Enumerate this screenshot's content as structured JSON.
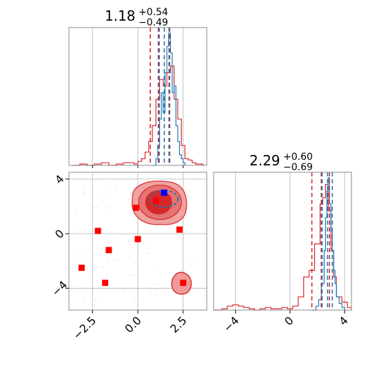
{
  "chart_data": [
    {
      "type": "histogram",
      "panel": "top-left-marginal",
      "title": {
        "value": "1.18",
        "plus": "+0.54",
        "minus": "−0.49"
      },
      "xlim": [
        -3.8,
        3.8
      ],
      "grid": true,
      "red_hist": {
        "x": [
          -3.6,
          -3.2,
          -2.8,
          -2.4,
          -2.0,
          -1.6,
          -1.2,
          -0.8,
          -0.4,
          -0.2,
          0.0,
          0.2,
          0.4,
          0.6,
          0.8,
          1.0,
          1.2,
          1.4,
          1.6,
          1.8,
          2.0,
          2.2,
          2.4,
          2.6,
          2.8,
          3.0,
          3.2,
          3.6
        ],
        "y": [
          0.0,
          0.01,
          0.0,
          0.01,
          0.02,
          0.0,
          0.01,
          0.02,
          0.02,
          0.01,
          0.03,
          0.05,
          0.1,
          0.18,
          0.3,
          0.5,
          0.65,
          0.6,
          0.7,
          0.75,
          0.5,
          0.35,
          0.15,
          0.05,
          0.04,
          0.02,
          0.01,
          0.0
        ]
      },
      "blue_hist": {
        "x": [
          0.8,
          1.0,
          1.1,
          1.2,
          1.3,
          1.4,
          1.5,
          1.6,
          1.7,
          1.8,
          1.9,
          2.0,
          2.1,
          2.2,
          2.3,
          2.4,
          2.5,
          2.6
        ],
        "y": [
          0.0,
          0.05,
          0.15,
          0.35,
          0.55,
          0.4,
          0.7,
          0.9,
          1.0,
          0.85,
          0.55,
          0.6,
          0.3,
          0.18,
          0.08,
          0.05,
          0.02,
          0.0
        ]
      },
      "red_quantiles": [
        0.69,
        1.18,
        1.72
      ],
      "blue_quantiles": [
        1.13,
        1.46,
        1.76
      ]
    },
    {
      "type": "scatter_contour",
      "panel": "bottom-left-2d",
      "xlim": [
        -3.8,
        3.8
      ],
      "ylim": [
        -5.6,
        4.5
      ],
      "x_ticks": [
        "−2.5",
        "0.0",
        "2.5"
      ],
      "x_tick_values": [
        -2.5,
        0.0,
        2.5
      ],
      "y_ticks": [
        "−4",
        "0",
        "4"
      ],
      "y_tick_values": [
        -4,
        0,
        4
      ],
      "grid": true,
      "red_points": [
        {
          "x": -3.1,
          "y": -2.5
        },
        {
          "x": -2.2,
          "y": 0.2
        },
        {
          "x": -1.6,
          "y": -1.2
        },
        {
          "x": -1.8,
          "y": -3.6
        },
        {
          "x": -0.1,
          "y": 1.9
        },
        {
          "x": 0.0,
          "y": -0.4
        },
        {
          "x": 1.0,
          "y": 2.4
        },
        {
          "x": 2.3,
          "y": 0.3
        },
        {
          "x": 2.5,
          "y": -3.6
        }
      ],
      "blue_point": {
        "x": 1.45,
        "y": 3.0
      },
      "main_cluster_center": {
        "x": 1.15,
        "y": 2.3
      },
      "secondary_cluster_center": {
        "x": 2.4,
        "y": -3.6
      }
    },
    {
      "type": "histogram",
      "panel": "bottom-right-marginal",
      "title": {
        "value": "2.29",
        "plus": "+0.60",
        "minus": "−0.69"
      },
      "xlim": [
        -5.6,
        4.5
      ],
      "x_ticks": [
        "−4",
        "0",
        "4"
      ],
      "x_tick_values": [
        -4,
        0,
        4
      ],
      "grid": true,
      "red_hist": {
        "x": [
          -5.6,
          -5.0,
          -4.6,
          -4.2,
          -3.8,
          -3.4,
          -3.0,
          -2.6,
          -2.2,
          -1.8,
          -1.4,
          -1.0,
          -0.6,
          -0.2,
          0.2,
          0.6,
          1.0,
          1.4,
          1.8,
          2.2,
          2.4,
          2.6,
          2.8,
          3.0,
          3.2,
          3.4,
          3.8,
          4.2,
          4.5
        ],
        "y": [
          0.0,
          0.01,
          0.03,
          0.04,
          0.03,
          0.02,
          0.01,
          0.0,
          0.01,
          0.02,
          0.01,
          0.01,
          0.02,
          0.01,
          0.03,
          0.1,
          0.25,
          0.3,
          0.5,
          0.8,
          0.85,
          0.95,
          0.75,
          0.45,
          0.25,
          0.1,
          0.06,
          0.02,
          0.0
        ]
      },
      "blue_hist": {
        "x": [
          1.6,
          1.9,
          2.1,
          2.3,
          2.5,
          2.6,
          2.7,
          2.8,
          2.9,
          3.0,
          3.1,
          3.2,
          3.3,
          3.4,
          3.6,
          3.8,
          4.0
        ],
        "y": [
          0.0,
          0.03,
          0.08,
          0.2,
          0.45,
          0.7,
          0.9,
          1.0,
          0.8,
          0.6,
          0.45,
          0.3,
          0.2,
          0.1,
          0.05,
          0.02,
          0.0
        ]
      },
      "red_quantiles": [
        1.6,
        2.29,
        2.89
      ],
      "blue_quantiles": [
        2.35,
        2.75,
        3.1
      ]
    }
  ],
  "colors": {
    "red": "#d62728",
    "red_fill_light": "#ef9a9a",
    "red_fill_mid": "#e57373",
    "red_marker": "#ff0000",
    "blue": "#1f77b4",
    "blue_marker": "#0000ff",
    "grid": "#b0b0b0",
    "axis": "#000000"
  }
}
